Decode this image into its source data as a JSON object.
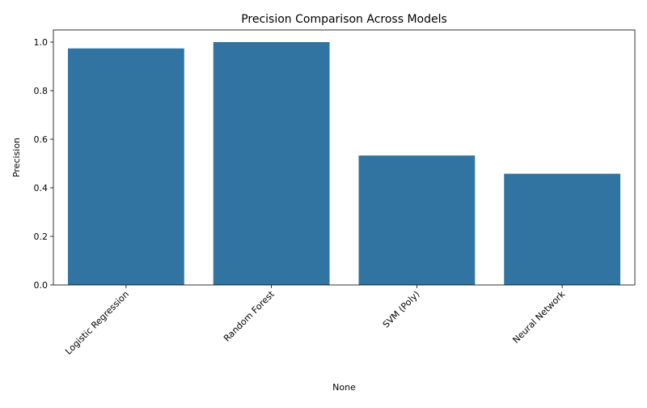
{
  "chart_data": {
    "type": "bar",
    "title": "Precision Comparison Across Models",
    "xlabel": "None",
    "ylabel": "Precision",
    "categories": [
      "Logistic Regression",
      "Random Forest",
      "SVM (Poly)",
      "Neural Network"
    ],
    "values": [
      0.974,
      1.0,
      0.533,
      0.458
    ],
    "ylim": [
      0,
      1.05
    ],
    "yticks": [
      "0.0",
      "0.2",
      "0.4",
      "0.6",
      "0.8",
      "1.0"
    ],
    "xtick_rotation_deg": 45,
    "grid": false,
    "legend": "none",
    "bar_color": "#3274a1"
  }
}
